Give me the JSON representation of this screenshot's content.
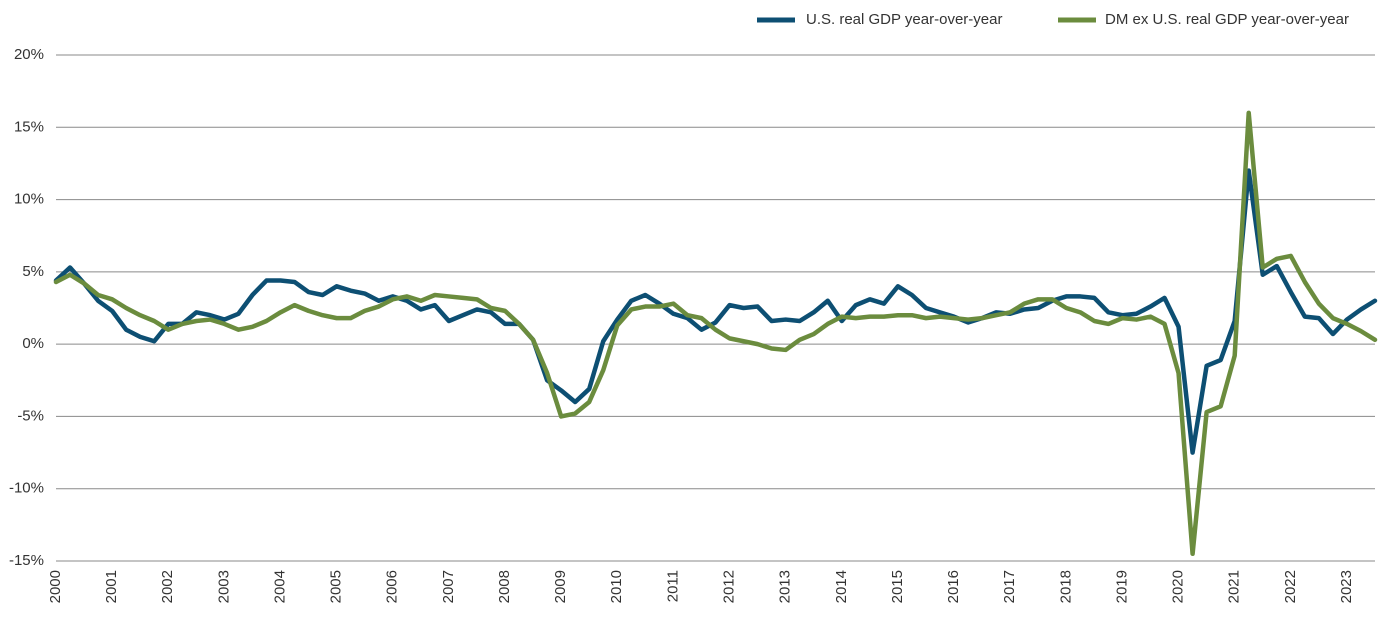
{
  "chart_data": {
    "type": "line",
    "x": [
      2000,
      2000.25,
      2000.5,
      2000.75,
      2001,
      2001.25,
      2001.5,
      2001.75,
      2002,
      2002.25,
      2002.5,
      2002.75,
      2003,
      2003.25,
      2003.5,
      2003.75,
      2004,
      2004.25,
      2004.5,
      2004.75,
      2005,
      2005.25,
      2005.5,
      2005.75,
      2006,
      2006.25,
      2006.5,
      2006.75,
      2007,
      2007.25,
      2007.5,
      2007.75,
      2008,
      2008.25,
      2008.5,
      2008.75,
      2009,
      2009.25,
      2009.5,
      2009.75,
      2010,
      2010.25,
      2010.5,
      2010.75,
      2011,
      2011.25,
      2011.5,
      2011.75,
      2012,
      2012.25,
      2012.5,
      2012.75,
      2013,
      2013.25,
      2013.5,
      2013.75,
      2014,
      2014.25,
      2014.5,
      2014.75,
      2015,
      2015.25,
      2015.5,
      2015.75,
      2016,
      2016.25,
      2016.5,
      2016.75,
      2017,
      2017.25,
      2017.5,
      2017.75,
      2018,
      2018.25,
      2018.5,
      2018.75,
      2019,
      2019.25,
      2019.5,
      2019.75,
      2020,
      2020.25,
      2020.5,
      2020.75,
      2021,
      2021.25,
      2021.5,
      2021.75,
      2022,
      2022.25,
      2022.5,
      2022.75,
      2023,
      2023.25,
      2023.5
    ],
    "series": [
      {
        "name": "U.S. real GDP year-over-year",
        "color": "#0d4f73",
        "values": [
          4.4,
          5.3,
          4.2,
          3.0,
          2.3,
          1.0,
          0.5,
          0.2,
          1.4,
          1.4,
          2.2,
          2.0,
          1.7,
          2.1,
          3.4,
          4.4,
          4.4,
          4.3,
          3.6,
          3.4,
          4.0,
          3.7,
          3.5,
          3.0,
          3.3,
          3.0,
          2.4,
          2.7,
          1.6,
          2.0,
          2.4,
          2.2,
          1.4,
          1.4,
          0.3,
          -2.5,
          -3.2,
          -4.0,
          -3.1,
          0.2,
          1.7,
          3.0,
          3.4,
          2.8,
          2.1,
          1.8,
          1.0,
          1.5,
          2.7,
          2.5,
          2.6,
          1.6,
          1.7,
          1.6,
          2.2,
          3.0,
          1.6,
          2.7,
          3.1,
          2.8,
          4.0,
          3.4,
          2.5,
          2.2,
          1.9,
          1.5,
          1.8,
          2.2,
          2.1,
          2.4,
          2.5,
          3.0,
          3.3,
          3.3,
          3.2,
          2.2,
          2.0,
          2.1,
          2.6,
          3.2,
          1.2,
          -7.5,
          -1.5,
          -1.1,
          1.6,
          12.0,
          4.8,
          5.4,
          3.6,
          1.9,
          1.8,
          0.7,
          1.7,
          2.4,
          3.0
        ]
      },
      {
        "name": "DM ex U.S. real GDP year-over-year",
        "color": "#6b8c3e",
        "values": [
          4.3,
          4.8,
          4.2,
          3.4,
          3.1,
          2.5,
          2.0,
          1.6,
          1.0,
          1.4,
          1.6,
          1.7,
          1.4,
          1.0,
          1.2,
          1.6,
          2.2,
          2.7,
          2.3,
          2.0,
          1.8,
          1.8,
          2.3,
          2.6,
          3.1,
          3.3,
          3.0,
          3.4,
          3.3,
          3.2,
          3.1,
          2.5,
          2.3,
          1.4,
          0.3,
          -2.0,
          -5.0,
          -4.8,
          -4.0,
          -1.8,
          1.3,
          2.4,
          2.6,
          2.6,
          2.8,
          2.0,
          1.8,
          1.0,
          0.4,
          0.2,
          0.0,
          -0.3,
          -0.4,
          0.3,
          0.7,
          1.4,
          1.9,
          1.8,
          1.9,
          1.9,
          2.0,
          2.0,
          1.8,
          1.9,
          1.8,
          1.7,
          1.8,
          2.0,
          2.2,
          2.8,
          3.1,
          3.1,
          2.5,
          2.2,
          1.6,
          1.4,
          1.8,
          1.7,
          1.9,
          1.4,
          -2.0,
          -14.5,
          -4.7,
          -4.3,
          -0.8,
          16.0,
          5.3,
          5.9,
          6.1,
          4.3,
          2.8,
          1.8,
          1.4,
          0.9,
          0.3
        ]
      }
    ],
    "xlim": [
      2000,
      2023.5
    ],
    "xticks": [
      2000,
      2001,
      2002,
      2003,
      2004,
      2005,
      2006,
      2007,
      2008,
      2009,
      2010,
      2011,
      2012,
      2013,
      2014,
      2015,
      2016,
      2017,
      2018,
      2019,
      2020,
      2021,
      2022,
      2023
    ],
    "ylim": [
      -15,
      20
    ],
    "yticks": [
      {
        "value": -15,
        "label": "-15%"
      },
      {
        "value": -10,
        "label": "-10%"
      },
      {
        "value": -5,
        "label": "-5%"
      },
      {
        "value": 0,
        "label": "0%"
      },
      {
        "value": 5,
        "label": "5%"
      },
      {
        "value": 10,
        "label": "10%"
      },
      {
        "value": 15,
        "label": "15%"
      },
      {
        "value": 20,
        "label": "20%"
      }
    ],
    "grid": true,
    "legend": "top-right"
  }
}
